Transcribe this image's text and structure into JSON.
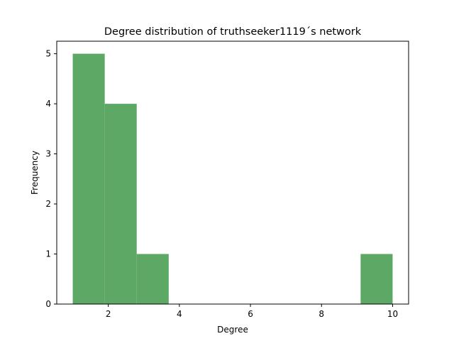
{
  "chart_data": {
    "type": "bar",
    "title": "Degree distribution of truthseeker1119´s network",
    "xlabel": "Degree",
    "ylabel": "Frequency",
    "xlim": [
      0.55,
      10.45
    ],
    "ylim": [
      0,
      5.25
    ],
    "bins": [
      {
        "x0": 1.0,
        "x1": 1.9,
        "value": 5
      },
      {
        "x0": 1.9,
        "x1": 2.8,
        "value": 4
      },
      {
        "x0": 2.8,
        "x1": 3.7,
        "value": 1
      },
      {
        "x0": 3.7,
        "x1": 4.6,
        "value": 0
      },
      {
        "x0": 4.6,
        "x1": 5.5,
        "value": 0
      },
      {
        "x0": 5.5,
        "x1": 6.4,
        "value": 0
      },
      {
        "x0": 6.4,
        "x1": 7.3,
        "value": 0
      },
      {
        "x0": 7.3,
        "x1": 8.2,
        "value": 0
      },
      {
        "x0": 8.2,
        "x1": 9.1,
        "value": 0
      },
      {
        "x0": 9.1,
        "x1": 10.0,
        "value": 1
      }
    ],
    "x_ticks": [
      {
        "value": 2,
        "label": "2"
      },
      {
        "value": 4,
        "label": "4"
      },
      {
        "value": 6,
        "label": "6"
      },
      {
        "value": 8,
        "label": "8"
      },
      {
        "value": 10,
        "label": "10"
      }
    ],
    "y_ticks": [
      {
        "value": 0,
        "label": "0"
      },
      {
        "value": 1,
        "label": "1"
      },
      {
        "value": 2,
        "label": "2"
      },
      {
        "value": 3,
        "label": "3"
      },
      {
        "value": 4,
        "label": "4"
      },
      {
        "value": 5,
        "label": "5"
      }
    ],
    "bar_color": "#5ca864",
    "grid": false,
    "legend": "none"
  }
}
